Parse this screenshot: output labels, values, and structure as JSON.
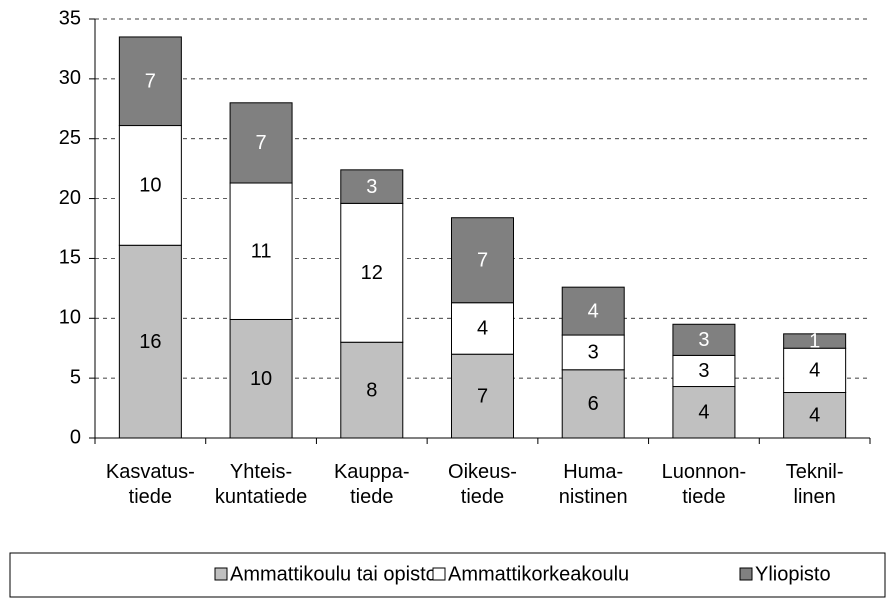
{
  "chart_data": {
    "type": "stacked-bar",
    "categories": [
      "Kasvatus-\ntiede",
      "Yhteis-\nkuntatiede",
      "Kauppa-\ntiede",
      "Oikeus-\ntiede",
      "Huma-\nnistinen",
      "Luonnon-\ntiede",
      "Teknil-\nlinen"
    ],
    "series": [
      {
        "name": "Ammattikoulu tai opisto",
        "color": "#c0c0c0",
        "label_color": "#000000",
        "values": [
          16.1,
          9.9,
          8.0,
          7.0,
          5.7,
          4.3,
          3.8
        ],
        "value_labels": [
          "16",
          "10",
          "8",
          "7",
          "6",
          "4",
          "4"
        ]
      },
      {
        "name": "Ammattikorkeakoulu",
        "color": "#ffffff",
        "label_color": "#000000",
        "values": [
          10.0,
          11.4,
          11.6,
          4.3,
          2.9,
          2.6,
          3.7
        ],
        "value_labels": [
          "10",
          "11",
          "12",
          "4",
          "3",
          "3",
          "4"
        ]
      },
      {
        "name": "Yliopisto",
        "color": "#808080",
        "label_color": "#ffffff",
        "values": [
          7.4,
          6.7,
          2.8,
          7.1,
          4.0,
          2.6,
          1.2
        ],
        "value_labels": [
          "7",
          "7",
          "3",
          "7",
          "4",
          "3",
          "1"
        ]
      }
    ],
    "ylim": [
      0,
      35
    ],
    "yticks": [
      0,
      5,
      10,
      15,
      20,
      25,
      30,
      35
    ],
    "grid": true,
    "legend": "bottom"
  }
}
